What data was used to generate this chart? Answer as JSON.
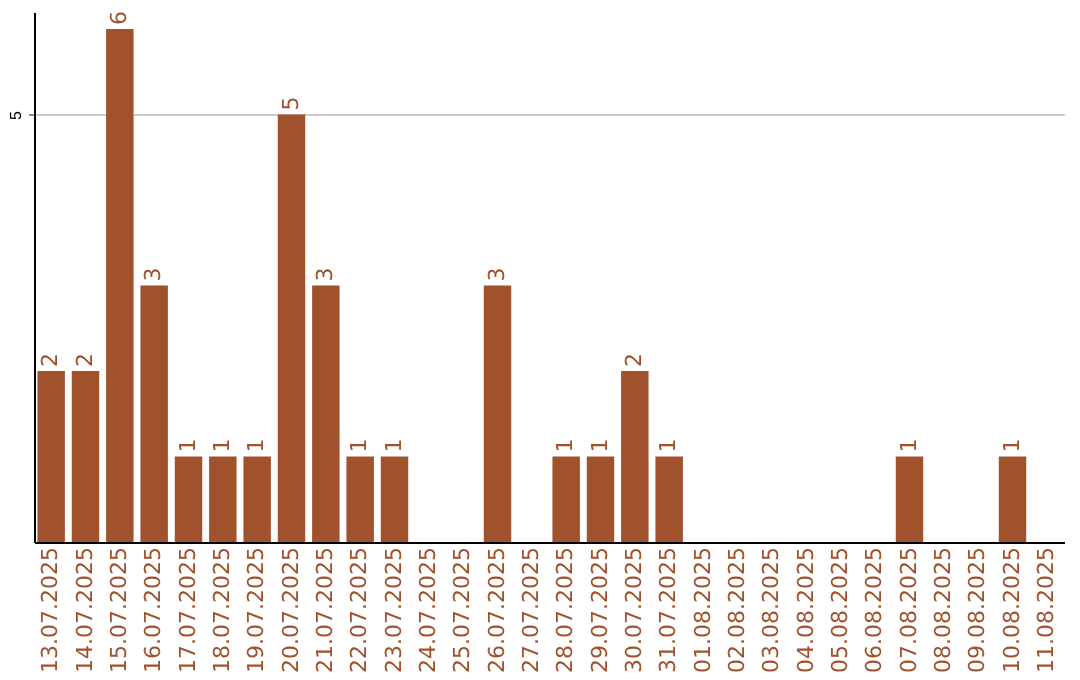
{
  "chart_data": {
    "type": "bar",
    "categories": [
      "13.07.2025",
      "14.07.2025",
      "15.07.2025",
      "16.07.2025",
      "17.07.2025",
      "18.07.2025",
      "19.07.2025",
      "20.07.2025",
      "21.07.2025",
      "22.07.2025",
      "23.07.2025",
      "24.07.2025",
      "25.07.2025",
      "26.07.2025",
      "27.07.2025",
      "28.07.2025",
      "29.07.2025",
      "30.07.2025",
      "31.07.2025",
      "01.08.2025",
      "02.08.2025",
      "03.08.2025",
      "04.08.2025",
      "05.08.2025",
      "06.08.2025",
      "07.08.2025",
      "08.08.2025",
      "09.08.2025",
      "10.08.2025",
      "11.08.2025"
    ],
    "values": [
      2,
      2,
      6,
      3,
      1,
      1,
      1,
      5,
      3,
      1,
      1,
      0,
      0,
      3,
      0,
      1,
      1,
      2,
      1,
      0,
      0,
      0,
      0,
      0,
      0,
      1,
      0,
      0,
      1,
      0
    ],
    "value_labels": [
      "2",
      "2",
      "6",
      "3",
      "1",
      "1",
      "1",
      "5",
      "3",
      "1",
      "1",
      null,
      null,
      "3",
      null,
      "1",
      "1",
      "2",
      "1",
      null,
      null,
      null,
      null,
      null,
      null,
      "1",
      null,
      null,
      "1",
      null
    ],
    "color": "#a0522d",
    "ylim": [
      0,
      6.2
    ],
    "yticks": [
      5
    ],
    "grid": "y"
  }
}
